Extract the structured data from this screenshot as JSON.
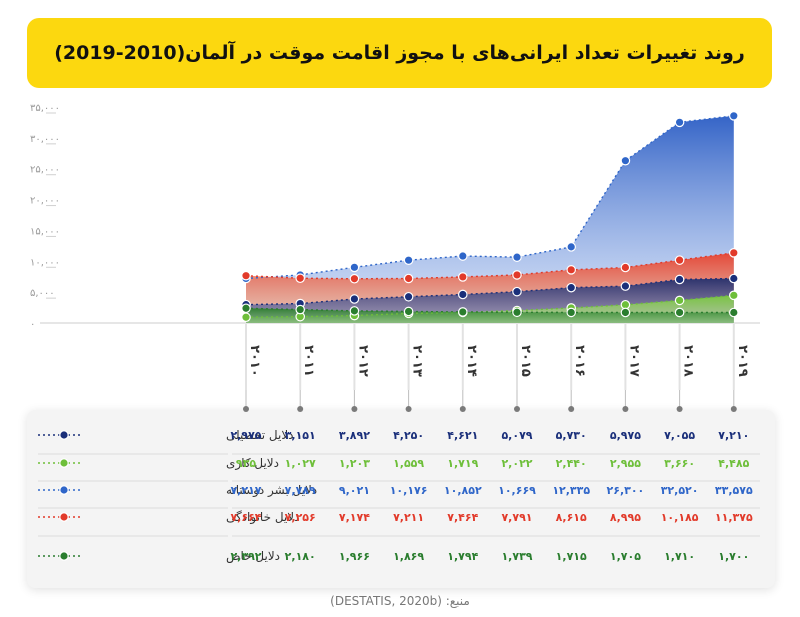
{
  "title": "روند تغییرات تعداد ایرانی‌های با مجوز اقامت موقت در آلمان(2010-2019)",
  "source": "منبع: (DESTATIS, 2020b)",
  "colors": {
    "education": "#1a2f7a",
    "work": "#6ebf3a",
    "humanitarian": "#2f66c9",
    "family": "#e23a2a",
    "special": "#2a7d2e",
    "title_bg": "#fcd80f"
  },
  "chart_data": {
    "type": "area",
    "title": "روند تغییرات تعداد ایرانی‌های با مجوز اقامت موقت در آلمان(2010-2019)",
    "x": [
      2010,
      2011,
      2012,
      2013,
      2014,
      2015,
      2016,
      2017,
      2018,
      2019
    ],
    "x_tick_labels": [
      "۲۰۱۰",
      "۲۰۱۱",
      "۲۰۱۲",
      "۲۰۱۳",
      "۲۰۱۴",
      "۲۰۱۵",
      "۲۰۱۶",
      "۲۰۱۷",
      "۲۰۱۸",
      "۲۰۱۹"
    ],
    "ylim": [
      0,
      35000
    ],
    "y_ticks": [
      0,
      5000,
      10000,
      15000,
      20000,
      25000,
      30000,
      35000
    ],
    "y_tick_labels": [
      "۰",
      "۵,۰۰۰",
      "۱۰,۰۰۰",
      "۱۵,۰۰۰",
      "۲۰,۰۰۰",
      "۲۵,۰۰۰",
      "۳۰,۰۰۰",
      "۳۵,۰۰۰"
    ],
    "grid": false,
    "series": [
      {
        "key": "education",
        "name": "دلایل تحصیلی",
        "values": [
          2975,
          3151,
          3892,
          4250,
          4621,
          5079,
          5730,
          5975,
          7055,
          7210
        ],
        "labels": [
          "۲,۹۷۵",
          "۳,۱۵۱",
          "۳,۸۹۲",
          "۴,۲۵۰",
          "۴,۶۲۱",
          "۵,۰۷۹",
          "۵,۷۳۰",
          "۵,۹۷۵",
          "۷,۰۵۵",
          "۷,۲۱۰"
        ]
      },
      {
        "key": "work",
        "name": "دلایل کاری",
        "values": [
          935,
          1027,
          1203,
          1559,
          1719,
          2022,
          2440,
          2955,
          3660,
          4485
        ],
        "labels": [
          "۹۳۵",
          "۱,۰۲۷",
          "۱,۲۰۳",
          "۱,۵۵۹",
          "۱,۷۱۹",
          "۲,۰۲۲",
          "۲,۴۴۰",
          "۲,۹۵۵",
          "۳,۶۶۰",
          "۴,۴۸۵"
        ]
      },
      {
        "key": "humanitarian",
        "name": "دلایل بشر دوستانه",
        "values": [
          7217,
          7789,
          9021,
          10176,
          10852,
          10669,
          12335,
          26300,
          32520,
          33575
        ],
        "labels": [
          "۷,۲۱۷",
          "۷,۷۸۹",
          "۹,۰۲۱",
          "۱۰,۱۷۶",
          "۱۰,۸۵۲",
          "۱۰,۶۶۹",
          "۱۲,۳۳۵",
          "۲۶,۳۰۰",
          "۳۲,۵۲۰",
          "۳۳,۵۷۵"
        ]
      },
      {
        "key": "family",
        "name": "دلایل خانوادگی",
        "values": [
          7664,
          7256,
          7174,
          7211,
          7464,
          7791,
          8615,
          8995,
          10185,
          11375
        ],
        "labels": [
          "۷,۶۶۴",
          "۷,۲۵۶",
          "۷,۱۷۴",
          "۷,۲۱۱",
          "۷,۴۶۴",
          "۷,۷۹۱",
          "۸,۶۱۵",
          "۸,۹۹۵",
          "۱۰,۱۸۵",
          "۱۱,۳۷۵"
        ]
      },
      {
        "key": "special",
        "name": "دلایل خاص",
        "values": [
          2392,
          2180,
          1966,
          1869,
          1794,
          1739,
          1715,
          1705,
          1710,
          1700
        ],
        "labels": [
          "۲,۳۹۲",
          "۲,۱۸۰",
          "۱,۹۶۶",
          "۱,۸۶۹",
          "۱,۷۹۴",
          "۱,۷۳۹",
          "۱,۷۱۵",
          "۱,۷۰۵",
          "۱,۷۱۰",
          "۱,۷۰۰"
        ]
      }
    ]
  }
}
